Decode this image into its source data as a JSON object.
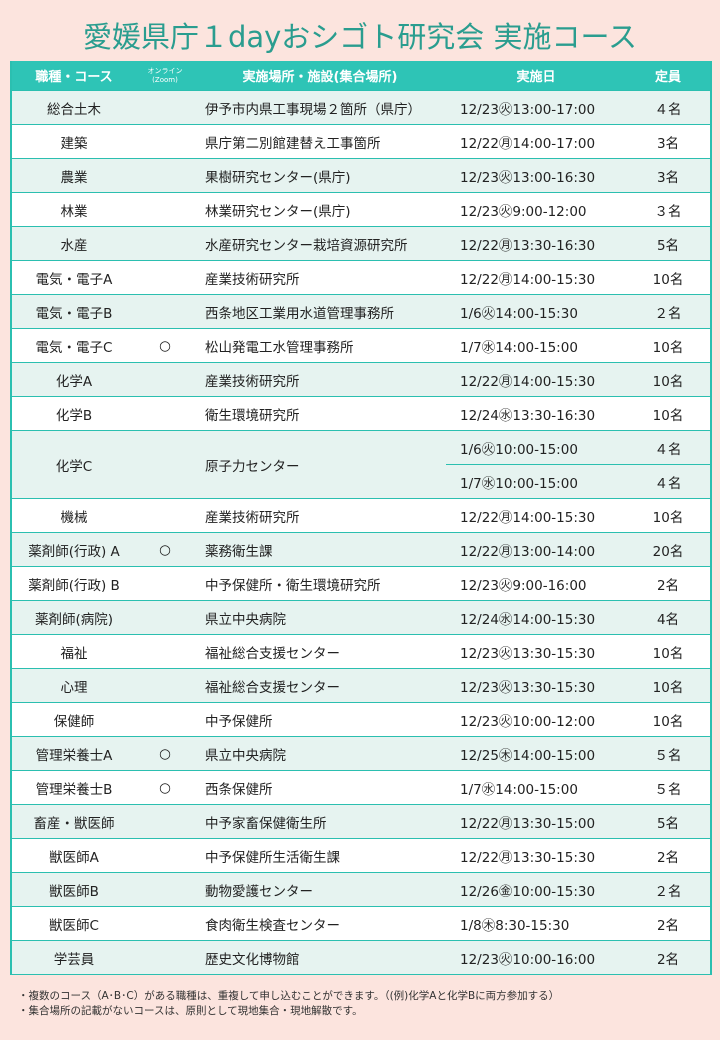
{
  "title": "愛媛県庁１dayおシゴト研究会 実施コース",
  "colors": {
    "header": "#2ec4b6",
    "border": "#2bbfb0",
    "title": "#2a9d8f",
    "background": "#fce4de",
    "row_alt": "#e6f3f0"
  },
  "headers": {
    "course": "職種・コース",
    "online_line1": "オンライン",
    "online_line2": "(Zoom)",
    "venue": "実施場所・施設(集合場所)",
    "date": "実施日",
    "capacity": "定員"
  },
  "rows": [
    {
      "course": "総合土木",
      "online": "",
      "venue": "伊予市内県工事現場２箇所（県庁）",
      "sessions": [
        {
          "date": "12/23㊋13:00-17:00",
          "capacity": "４名"
        }
      ]
    },
    {
      "course": "建築",
      "online": "",
      "venue": "県庁第二別館建替え工事箇所",
      "sessions": [
        {
          "date": "12/22㊊14:00-17:00",
          "capacity": "3名"
        }
      ]
    },
    {
      "course": "農業",
      "online": "",
      "venue": "果樹研究センター(県庁)",
      "sessions": [
        {
          "date": "12/23㊋13:00-16:30",
          "capacity": "3名"
        }
      ]
    },
    {
      "course": "林業",
      "online": "",
      "venue": "林業研究センター(県庁)",
      "sessions": [
        {
          "date": "12/23㊋9:00-12:00",
          "capacity": "３名"
        }
      ]
    },
    {
      "course": "水産",
      "online": "",
      "venue": "水産研究センター栽培資源研究所",
      "sessions": [
        {
          "date": "12/22㊊13:30-16:30",
          "capacity": "5名"
        }
      ]
    },
    {
      "course": "電気・電子A",
      "online": "",
      "venue": "産業技術研究所",
      "sessions": [
        {
          "date": "12/22㊊14:00-15:30",
          "capacity": "10名"
        }
      ]
    },
    {
      "course": "電気・電子B",
      "online": "",
      "venue": "西条地区工業用水道管理事務所",
      "sessions": [
        {
          "date": "1/6㊋14:00-15:30",
          "capacity": "２名"
        }
      ]
    },
    {
      "course": "電気・電子C",
      "online": "○",
      "venue": "松山発電工水管理事務所",
      "sessions": [
        {
          "date": "1/7㊌14:00-15:00",
          "capacity": "10名"
        }
      ]
    },
    {
      "course": "化学A",
      "online": "",
      "venue": "産業技術研究所",
      "sessions": [
        {
          "date": "12/22㊊14:00-15:30",
          "capacity": "10名"
        }
      ]
    },
    {
      "course": "化学B",
      "online": "",
      "venue": "衛生環境研究所",
      "sessions": [
        {
          "date": "12/24㊌13:30-16:30",
          "capacity": "10名"
        }
      ]
    },
    {
      "course": "化学C",
      "online": "",
      "venue": "原子力センター",
      "sessions": [
        {
          "date": "1/6㊋10:00-15:00",
          "capacity": "４名"
        },
        {
          "date": "1/7㊌10:00-15:00",
          "capacity": "４名"
        }
      ]
    },
    {
      "course": "機械",
      "online": "",
      "venue": "産業技術研究所",
      "sessions": [
        {
          "date": "12/22㊊14:00-15:30",
          "capacity": "10名"
        }
      ]
    },
    {
      "course": "薬剤師(行政) A",
      "online": "○",
      "venue": "薬務衛生課",
      "sessions": [
        {
          "date": "12/22㊊13:00-14:00",
          "capacity": "20名"
        }
      ]
    },
    {
      "course": "薬剤師(行政) B",
      "online": "",
      "venue": "中予保健所・衛生環境研究所",
      "sessions": [
        {
          "date": "12/23㊋9:00-16:00",
          "capacity": "2名"
        }
      ]
    },
    {
      "course": "薬剤師(病院)",
      "online": "",
      "venue": "県立中央病院",
      "sessions": [
        {
          "date": "12/24㊌14:00-15:30",
          "capacity": "4名"
        }
      ]
    },
    {
      "course": "福祉",
      "online": "",
      "venue": "福祉総合支援センター",
      "sessions": [
        {
          "date": "12/23㊋13:30-15:30",
          "capacity": "10名"
        }
      ]
    },
    {
      "course": "心理",
      "online": "",
      "venue": "福祉総合支援センター",
      "sessions": [
        {
          "date": "12/23㊋13:30-15:30",
          "capacity": "10名"
        }
      ]
    },
    {
      "course": "保健師",
      "online": "",
      "venue": "中予保健所",
      "sessions": [
        {
          "date": "12/23㊋10:00-12:00",
          "capacity": "10名"
        }
      ]
    },
    {
      "course": "管理栄養士A",
      "online": "○",
      "venue": "県立中央病院",
      "sessions": [
        {
          "date": "12/25㊍14:00-15:00",
          "capacity": "５名"
        }
      ]
    },
    {
      "course": "管理栄養士B",
      "online": "○",
      "venue": "西条保健所",
      "sessions": [
        {
          "date": "1/7㊌14:00-15:00",
          "capacity": "５名"
        }
      ]
    },
    {
      "course": "畜産・獣医師",
      "online": "",
      "venue": "中予家畜保健衛生所",
      "sessions": [
        {
          "date": "12/22㊊13:30-15:00",
          "capacity": "5名"
        }
      ]
    },
    {
      "course": "獣医師A",
      "online": "",
      "venue": "中予保健所生活衛生課",
      "sessions": [
        {
          "date": "12/22㊊13:30-15:30",
          "capacity": "2名"
        }
      ]
    },
    {
      "course": "獣医師B",
      "online": "",
      "venue": "動物愛護センター",
      "sessions": [
        {
          "date": "12/26㊎10:00-15:30",
          "capacity": "２名"
        }
      ]
    },
    {
      "course": "獣医師C",
      "online": "",
      "venue": "食肉衛生検査センター",
      "sessions": [
        {
          "date": "1/8㊍8:30-15:30",
          "capacity": "2名"
        }
      ]
    },
    {
      "course": "学芸員",
      "online": "",
      "venue": "歴史文化博物館",
      "sessions": [
        {
          "date": "12/23㊋10:00-16:00",
          "capacity": "2名"
        }
      ]
    }
  ],
  "notes": [
    "・複数のコース（A･B･C）がある職種は、重複して申し込むことができます。（(例)化学Aと化学Bに両方参加する）",
    "・集合場所の記載がないコースは、原則として現地集合・現地解散です。"
  ]
}
